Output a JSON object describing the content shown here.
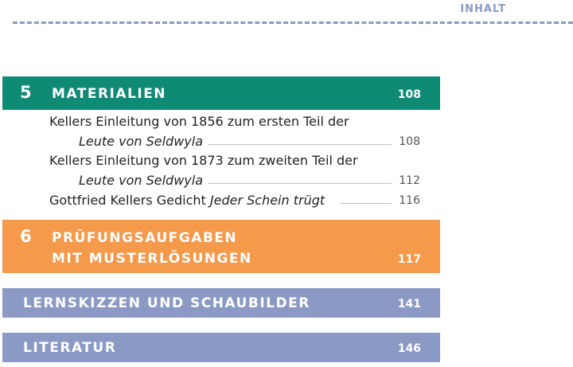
{
  "header": {
    "label": "INHALT"
  },
  "colors": {
    "green": "#0f8a74",
    "orange": "#f5994a",
    "blue": "#8a9ac4"
  },
  "sections": [
    {
      "number": "5",
      "title": "MATERIALIEN",
      "page": "108",
      "entries": [
        {
          "line1": "Kellers Einleitung von 1856 zum ersten Teil der",
          "line2": "Leute von Seldwyla",
          "page": "108"
        },
        {
          "line1": "Kellers Einleitung von 1873 zum zweiten Teil der",
          "line2": "Leute von Seldwyla",
          "page": "112"
        },
        {
          "text": "Gottfried Kellers Gedicht ",
          "italic": "Jeder Schein trügt",
          "page": "116"
        }
      ]
    },
    {
      "number": "6",
      "title_line1": "PRÜFUNGSAUFGABEN",
      "title_line2": "MIT MUSTERLÖSUNGEN",
      "page": "117"
    },
    {
      "title": "LERNSKIZZEN UND SCHAUBILDER",
      "page": "141"
    },
    {
      "title": "LITERATUR",
      "page": "146"
    }
  ]
}
